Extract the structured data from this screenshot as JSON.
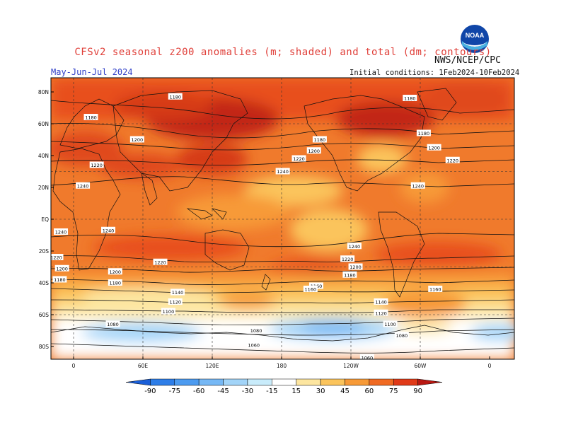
{
  "header": {
    "title": "CFSv2 seasonal z200 anomalies (m; shaded) and total (dm; contours)",
    "agency": "NWS/NCEP/CPC",
    "season": "May-Jun-Jul 2024",
    "initial_conditions": "Initial conditions: 1Feb2024-10Feb2024",
    "logo_text": "NOAA"
  },
  "axes": {
    "lat_labels": [
      "80N",
      "60N",
      "40N",
      "20N",
      "EQ",
      "20S",
      "40S",
      "60S",
      "80S"
    ],
    "lon_labels": [
      "0",
      "60E",
      "120E",
      "180",
      "120W",
      "60W",
      "0"
    ]
  },
  "contour_labels": [
    {
      "text": "1180",
      "lon": 88,
      "lat": 77
    },
    {
      "text": "1180",
      "lon": 15,
      "lat": 64
    },
    {
      "text": "1200",
      "lon": 55,
      "lat": 50
    },
    {
      "text": "1220",
      "lon": 20,
      "lat": 34
    },
    {
      "text": "1240",
      "lon": 8,
      "lat": 21
    },
    {
      "text": "1180",
      "lon": -147,
      "lat": 50
    },
    {
      "text": "1200",
      "lon": -152,
      "lat": 43
    },
    {
      "text": "1220",
      "lon": -165,
      "lat": 38
    },
    {
      "text": "1240",
      "lon": -179,
      "lat": 30
    },
    {
      "text": "1180",
      "lon": -69,
      "lat": 76
    },
    {
      "text": "1180",
      "lon": -57,
      "lat": 54
    },
    {
      "text": "1200",
      "lon": -48,
      "lat": 45
    },
    {
      "text": "1220",
      "lon": -32,
      "lat": 37
    },
    {
      "text": "1240",
      "lon": -62,
      "lat": 21
    },
    {
      "text": "1240",
      "lon": 30,
      "lat": -7
    },
    {
      "text": "1220",
      "lon": 75,
      "lat": -27
    },
    {
      "text": "1200",
      "lon": 36,
      "lat": -33
    },
    {
      "text": "1180",
      "lon": 36,
      "lat": -40
    },
    {
      "text": "1160",
      "lon": -150,
      "lat": -42
    },
    {
      "text": "1140",
      "lon": 90,
      "lat": -46
    },
    {
      "text": "1120",
      "lon": 88,
      "lat": -52
    },
    {
      "text": "1100",
      "lon": 82,
      "lat": -58
    },
    {
      "text": "1080",
      "lon": 34,
      "lat": -66
    },
    {
      "text": "1060",
      "lon": 156,
      "lat": -79
    },
    {
      "text": "1080",
      "lon": 158,
      "lat": -70
    },
    {
      "text": "1240",
      "lon": -117,
      "lat": -17
    },
    {
      "text": "1220",
      "lon": -123,
      "lat": -25
    },
    {
      "text": "1200",
      "lon": -116,
      "lat": -30
    },
    {
      "text": "1180",
      "lon": -121,
      "lat": -35
    },
    {
      "text": "1160",
      "lon": -47,
      "lat": -44
    },
    {
      "text": "1140",
      "lon": -94,
      "lat": -52
    },
    {
      "text": "1120",
      "lon": -94,
      "lat": -59
    },
    {
      "text": "1100",
      "lon": -86,
      "lat": -66
    },
    {
      "text": "1080",
      "lon": -76,
      "lat": -73
    },
    {
      "text": "1060",
      "lon": -106,
      "lat": -87
    },
    {
      "text": "1240",
      "lon": -11,
      "lat": -8
    },
    {
      "text": "1220",
      "lon": -15,
      "lat": -24
    },
    {
      "text": "1200",
      "lon": -10,
      "lat": -31
    },
    {
      "text": "1180",
      "lon": -12,
      "lat": -38
    },
    {
      "text": "1160",
      "lon": -155,
      "lat": -44
    }
  ],
  "colorbar": {
    "labels": [
      "-90",
      "-75",
      "-60",
      "-45",
      "-30",
      "-15",
      "15",
      "30",
      "45",
      "60",
      "75",
      "90"
    ],
    "colors": [
      "#1a5fd8",
      "#2e7ee8",
      "#4c9bf0",
      "#76b8f5",
      "#a2d4f8",
      "#c9ecfb",
      "#ffffff",
      "#fde6a0",
      "#fbc45c",
      "#f79a37",
      "#f06a22",
      "#e03a18",
      "#b81812"
    ]
  },
  "colors": {
    "accent_title": "#e0403a",
    "season_text": "#3040c8",
    "ocean_base": "#f07a2c"
  }
}
